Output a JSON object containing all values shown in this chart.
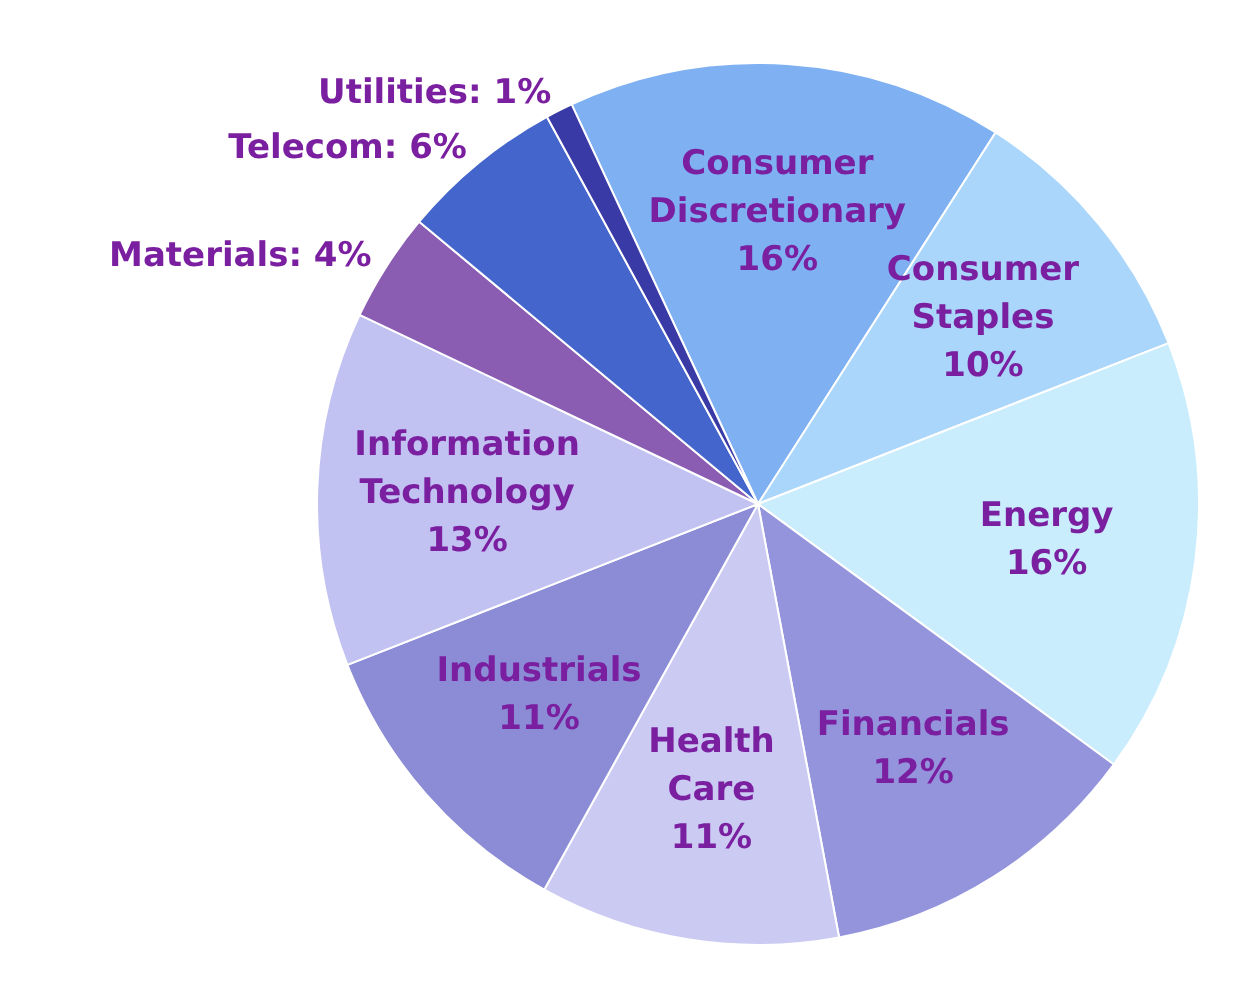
{
  "chart_data": {
    "type": "pie",
    "categories": [
      "Consumer Discretionary",
      "Consumer Staples",
      "Energy",
      "Financials",
      "Health Care",
      "Industrials",
      "Information Technology",
      "Materials",
      "Telecom",
      "Utilities"
    ],
    "values": [
      16,
      10,
      16,
      12,
      11,
      11,
      13,
      4,
      6,
      1
    ],
    "value_labels": [
      "16%",
      "10%",
      "16%",
      "12%",
      "11%",
      "11%",
      "13%",
      "4%",
      "6%",
      "1%"
    ],
    "colors": [
      "#7eb0f2",
      "#a9d6fa",
      "#c9edfc",
      "#9494dc",
      "#cacaf2",
      "#8c8cd6",
      "#c2c2f2",
      "#8a5cb2",
      "#4466cc",
      "#3a3aa6"
    ],
    "legend": false
  }
}
